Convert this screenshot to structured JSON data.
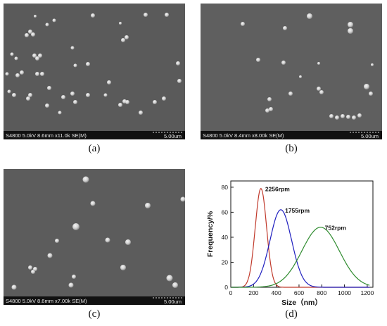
{
  "panels": [
    {
      "caption": "(a)",
      "info": "S4800 5.0kV 8.6mm x11.0k SE(M)",
      "scale": "5.00um"
    },
    {
      "caption": "(b)",
      "info": "S4800 5.0kV 8.4mm x8.00k SE(M)",
      "scale": "5.00um"
    },
    {
      "caption": "(c)",
      "info": "S4800 5.0kV 8.6mm x7.00k SE(M)",
      "scale": "5.00um"
    },
    {
      "caption": "(d)"
    }
  ],
  "chart_data": {
    "type": "line",
    "xlabel": "Size（nm）",
    "ylabel": "Frequency/%",
    "xlim": [
      0,
      1250
    ],
    "ylim": [
      0,
      85
    ],
    "xticks": [
      0,
      200,
      400,
      600,
      800,
      1000,
      1200
    ],
    "yticks": [
      0,
      20,
      40,
      60,
      80
    ],
    "series": [
      {
        "name": "2256rpm",
        "color": "#c0392b",
        "peak_x": 265,
        "peak_y": 79,
        "sigma": 50
      },
      {
        "name": "1755rpm",
        "color": "#1f1fbf",
        "peak_x": 440,
        "peak_y": 62,
        "sigma": 95
      },
      {
        "name": "752rpm",
        "color": "#2e8b2e",
        "peak_x": 790,
        "peak_y": 48,
        "sigma": 165
      }
    ]
  }
}
